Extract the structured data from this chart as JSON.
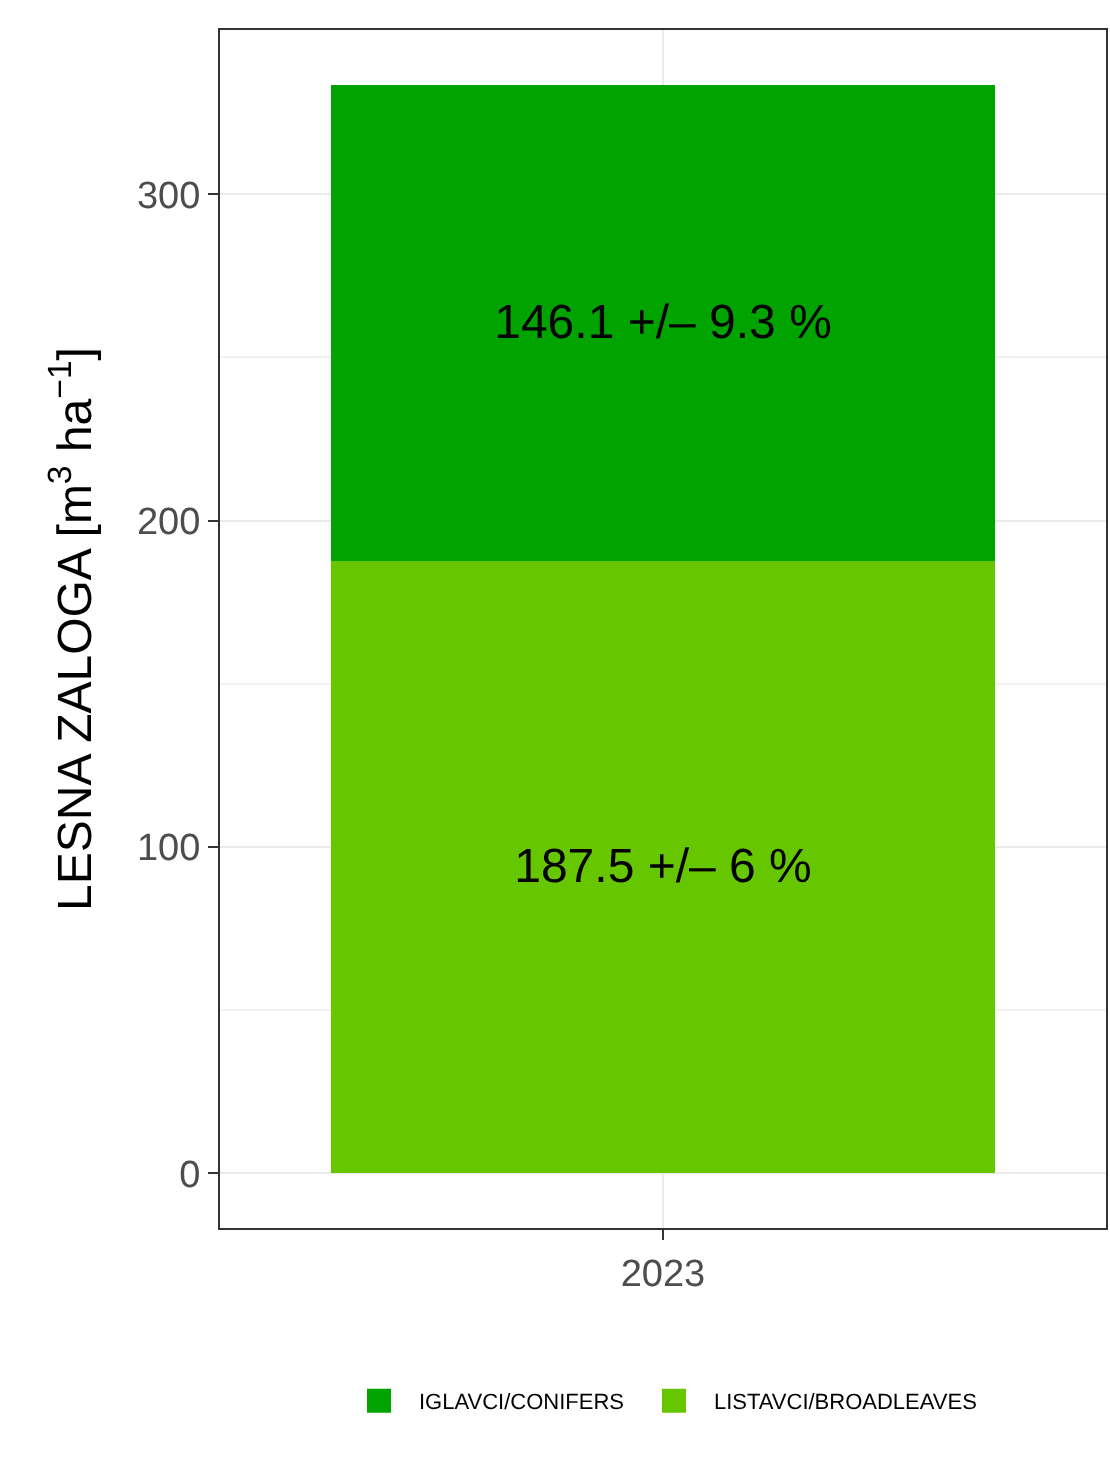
{
  "chart_data": {
    "type": "bar",
    "stacked": true,
    "ylabel": "LESNA ZALOGA [m$^{3}$ ha$^{−1}$]",
    "categories": [
      "2023"
    ],
    "series": [
      {
        "name": "LISTAVCI/BROADLEAVES",
        "color": "#66c600",
        "values": [
          187.5
        ],
        "value_labels": [
          "187.5 +/– 6 %"
        ]
      },
      {
        "name": "IGLAVCI/CONIFERS",
        "color": "#00a300",
        "values": [
          146.1
        ],
        "value_labels": [
          "146.1 +/– 9.3 %"
        ]
      }
    ],
    "ylim": [
      -16.7,
      350.3
    ],
    "yticks": [
      0,
      100,
      200,
      300
    ],
    "grid": true,
    "legend": "bottom"
  }
}
